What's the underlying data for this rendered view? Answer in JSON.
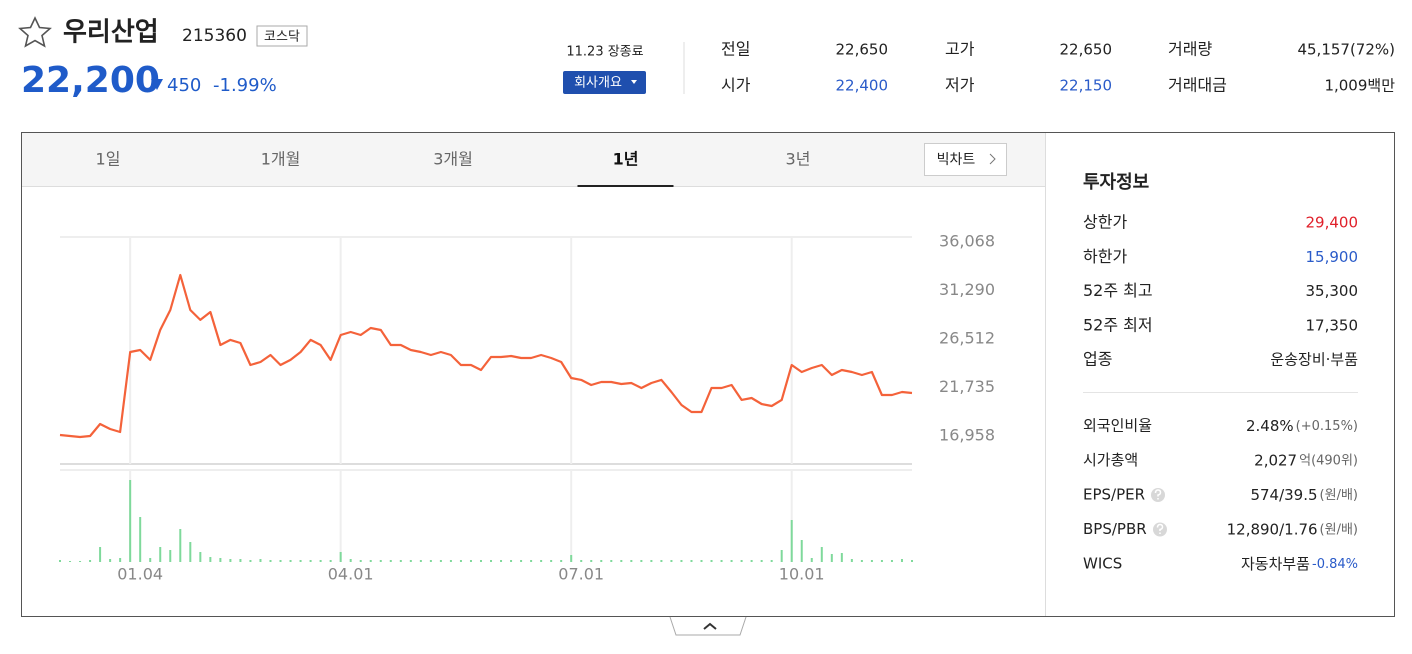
{
  "header": {
    "name": "우리산업",
    "code": "215360",
    "market": "코스닥",
    "price": "22,200",
    "change": "450",
    "change_rate": "-1.99%",
    "status": "11.23 장종료",
    "company_button": "회사개요"
  },
  "stats": [
    {
      "label": "전일",
      "value": "22,650"
    },
    {
      "label": "고가",
      "value": "22,650"
    },
    {
      "label": "거래량",
      "value": "45,157(72%)"
    },
    {
      "label": "시가",
      "value": "22,400",
      "color": "#2a5bc9"
    },
    {
      "label": "저가",
      "value": "22,150",
      "color": "#2a5bc9"
    },
    {
      "label": "거래대금",
      "value": "1,009백만"
    }
  ],
  "tabs": [
    "1일",
    "1개월",
    "3개월",
    "1년",
    "3년"
  ],
  "active_tab": 3,
  "big_chart": "빅차트",
  "info": {
    "title": "투자정보",
    "price_rows": [
      {
        "label": "상한가",
        "value": "29,400",
        "color": "#e0202a"
      },
      {
        "label": "하한가",
        "value": "15,900",
        "color": "#2a5bc9"
      },
      {
        "label": "52주 최고",
        "value": "35,300"
      },
      {
        "label": "52주 최저",
        "value": "17,350"
      },
      {
        "label": "업종",
        "value": "운송장비·부품"
      }
    ],
    "company_rows": [
      {
        "label": "외국인비율",
        "value": "2.48%",
        "note": "(+0.15%)"
      },
      {
        "label": "시가총액",
        "value": "2,027",
        "note": "억(490위)"
      },
      {
        "label": "EPS/PER",
        "value": "574/39.5",
        "note": "(원/배)"
      },
      {
        "label": "BPS/PBR",
        "value": "12,890/1.76",
        "note": "(원/배)"
      },
      {
        "label": "WICS",
        "value": "자동차부품",
        "note": "-0.84%",
        "note_color": "#2a5bc9"
      }
    ]
  },
  "chart_data": [
    {
      "type": "line",
      "color": "#f4623a",
      "grid": true,
      "categories": [
        null,
        null,
        null,
        null,
        null,
        null,
        null,
        "01.04",
        null,
        null,
        null,
        null,
        null,
        null,
        null,
        null,
        null,
        null,
        null,
        null,
        null,
        null,
        null,
        null,
        null,
        null,
        null,
        null,
        "04.01",
        null,
        null,
        null,
        null,
        null,
        null,
        null,
        null,
        null,
        null,
        null,
        null,
        null,
        null,
        null,
        null,
        null,
        null,
        null,
        null,
        null,
        null,
        "07.01",
        null,
        null,
        null,
        null,
        null,
        null,
        null,
        null,
        null,
        null,
        null,
        null,
        null,
        null,
        null,
        null,
        null,
        null,
        null,
        null,
        null,
        "10.01",
        null,
        null,
        null,
        null,
        null,
        null,
        null,
        null,
        null,
        null,
        null,
        null
      ],
      "values": [
        17060,
        16960,
        16860,
        16960,
        18140,
        17650,
        17350,
        25230,
        25430,
        24450,
        27400,
        29370,
        32820,
        29370,
        28390,
        29170,
        25920,
        26420,
        26120,
        23950,
        24250,
        24940,
        23950,
        24450,
        25230,
        26420,
        25920,
        24450,
        26910,
        27200,
        26910,
        27600,
        27400,
        25920,
        25920,
        25430,
        25230,
        24940,
        25230,
        24940,
        23950,
        23950,
        23460,
        24740,
        24740,
        24840,
        24640,
        24640,
        24940,
        24640,
        24250,
        22670,
        22480,
        21980,
        22280,
        22280,
        22080,
        22180,
        21690,
        22180,
        22480,
        21290,
        20010,
        19320,
        19320,
        21690,
        21690,
        21980,
        20510,
        20700,
        20110,
        19910,
        20510,
        23950,
        23260,
        23660,
        23950,
        22970,
        23460,
        23260,
        22970,
        23260,
        21000,
        21000,
        21290,
        21190
      ],
      "ylim": [
        14200,
        36560
      ],
      "yticks": [
        {
          "value": 16958,
          "label": "16,958"
        },
        {
          "value": 21735,
          "label": "21,735"
        },
        {
          "value": 26512,
          "label": "26,512"
        },
        {
          "value": 31290,
          "label": "31,290"
        },
        {
          "value": 36068,
          "label": "36,068"
        }
      ]
    },
    {
      "type": "bar",
      "color": "#7fd99b",
      "ylim": [
        0,
        90
      ],
      "values": [
        2,
        1,
        1,
        2,
        15,
        3,
        4,
        82,
        45,
        4,
        15,
        12,
        33,
        20,
        10,
        5,
        4,
        3,
        3,
        2,
        3,
        2,
        2,
        2,
        2,
        2,
        2,
        2,
        10,
        3,
        2,
        2,
        2,
        2,
        2,
        2,
        2,
        2,
        2,
        2,
        2,
        2,
        2,
        2,
        2,
        2,
        2,
        2,
        2,
        2,
        2,
        7,
        2,
        2,
        2,
        2,
        2,
        2,
        2,
        2,
        2,
        2,
        2,
        2,
        2,
        2,
        2,
        2,
        2,
        2,
        2,
        2,
        12,
        42,
        22,
        4,
        15,
        8,
        9,
        3,
        2,
        2,
        2,
        2,
        3,
        2
      ]
    }
  ]
}
